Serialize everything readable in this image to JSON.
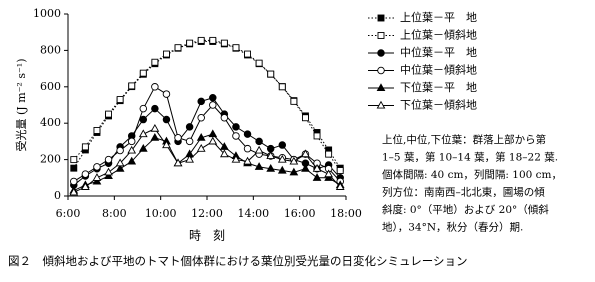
{
  "chart_data": {
    "type": "line",
    "y_label": "受光量 (J m⁻² s⁻¹)",
    "x_label": "時　刻",
    "caption": "図２　傾斜地および平地のトマト個体群における葉位別受光量の日変化シミュレーション",
    "notes": [
      "上位,中位,下位葉：群落上部から第",
      "1–5 葉，第 10–14 葉，第 18–22 葉.",
      "個体間隔: 40 cm，列間隔: 100 cm，",
      "列方位：南南西–北北東，圃場の傾",
      "斜度: 0°（平地）および 20°（傾斜",
      "地），34°N，秋分（春分）期."
    ],
    "x": [
      6.25,
      6.75,
      7.25,
      7.75,
      8.25,
      8.75,
      9.25,
      9.75,
      10.25,
      10.75,
      11.25,
      11.75,
      12.25,
      12.75,
      13.25,
      13.75,
      14.25,
      14.75,
      15.25,
      15.75,
      16.25,
      16.75,
      17.25,
      17.75
    ],
    "xlim": [
      6,
      18
    ],
    "xticks": [
      {
        "value": 6,
        "label": "6:00"
      },
      {
        "value": 8,
        "label": "8:00"
      },
      {
        "value": 10,
        "label": "10:00"
      },
      {
        "value": 12,
        "label": "12:00"
      },
      {
        "value": 14,
        "label": "14:00"
      },
      {
        "value": 16,
        "label": "16:00"
      },
      {
        "value": 18,
        "label": "18:00"
      }
    ],
    "ylim": [
      0,
      1000
    ],
    "yticks": [
      0,
      200,
      400,
      600,
      800,
      1000
    ],
    "grid": false,
    "series": [
      {
        "name": "上位葉－平　地",
        "color": "#000000",
        "marker": "square",
        "marker_fill": "#000000",
        "line_style": "dotted",
        "values": [
          153,
          253,
          349,
          440,
          524,
          601,
          669,
          727,
          775,
          812,
          836,
          849,
          849,
          836,
          812,
          775,
          727,
          669,
          601,
          524,
          440,
          349,
          253,
          153
        ]
      },
      {
        "name": "上位葉－傾斜地",
        "color": "#000000",
        "marker": "square",
        "marker_fill": "#ffffff",
        "line_style": "dotted",
        "values": [
          200,
          270,
          360,
          450,
          530,
          605,
          675,
          735,
          780,
          815,
          840,
          855,
          855,
          840,
          815,
          780,
          730,
          670,
          600,
          520,
          430,
          330,
          230,
          140
        ]
      },
      {
        "name": "中位葉－平　地",
        "color": "#000000",
        "marker": "circle",
        "marker_fill": "#000000",
        "line_style": "solid",
        "values": [
          60,
          110,
          150,
          180,
          270,
          330,
          420,
          480,
          420,
          300,
          380,
          520,
          540,
          450,
          380,
          340,
          300,
          260,
          280,
          200,
          180,
          150,
          170,
          100
        ]
      },
      {
        "name": "中位葉－傾斜地",
        "color": "#000000",
        "marker": "circle",
        "marker_fill": "#ffffff",
        "line_style": "solid",
        "values": [
          80,
          120,
          160,
          200,
          250,
          300,
          480,
          600,
          560,
          320,
          300,
          430,
          500,
          430,
          330,
          260,
          230,
          220,
          210,
          200,
          230,
          180,
          150,
          80
        ]
      },
      {
        "name": "下位葉－平　地",
        "color": "#000000",
        "marker": "triangle",
        "marker_fill": "#000000",
        "line_style": "solid",
        "values": [
          30,
          60,
          80,
          110,
          150,
          190,
          260,
          320,
          300,
          180,
          230,
          320,
          340,
          270,
          220,
          180,
          160,
          150,
          140,
          130,
          150,
          100,
          100,
          60
        ]
      },
      {
        "name": "下位葉－傾斜地",
        "color": "#000000",
        "marker": "triangle",
        "marker_fill": "#ffffff",
        "line_style": "solid",
        "values": [
          20,
          50,
          100,
          130,
          180,
          250,
          340,
          370,
          280,
          180,
          200,
          260,
          300,
          230,
          200,
          190,
          250,
          220,
          200,
          190,
          230,
          150,
          120,
          50
        ]
      }
    ]
  }
}
